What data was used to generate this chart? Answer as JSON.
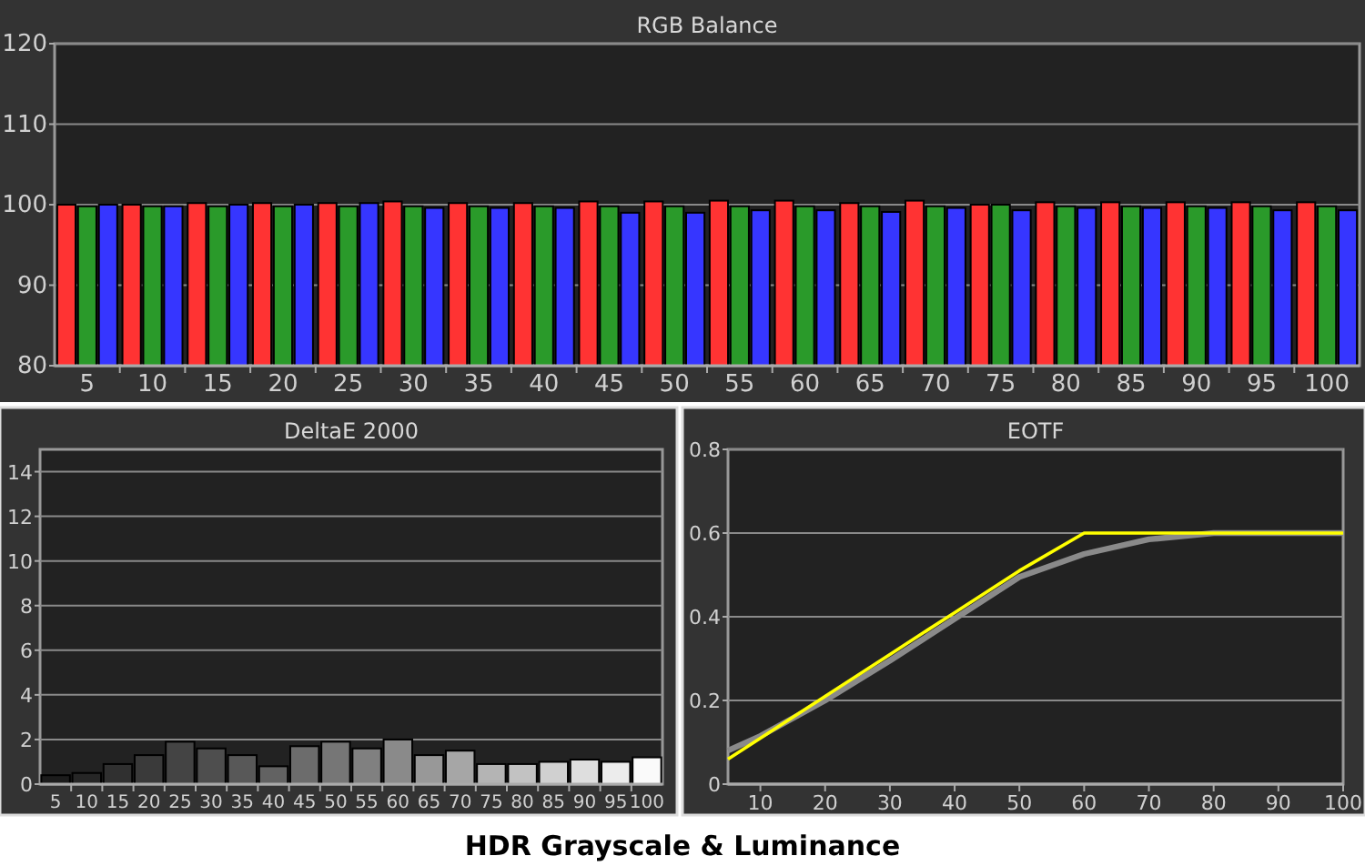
{
  "chart_data": [
    {
      "type": "bar",
      "title": "RGB Balance",
      "categories": [
        "5",
        "10",
        "15",
        "20",
        "25",
        "30",
        "35",
        "40",
        "45",
        "50",
        "55",
        "60",
        "65",
        "70",
        "75",
        "80",
        "85",
        "90",
        "95",
        "100"
      ],
      "series": [
        {
          "color": "#ff3333",
          "values": [
            100,
            100,
            100.2,
            100.2,
            100.2,
            100.4,
            100.2,
            100.2,
            100.4,
            100.4,
            100.5,
            100.5,
            100.2,
            100.5,
            100,
            100.3,
            100.3,
            100.3,
            100.3,
            100.3
          ]
        },
        {
          "color": "#2a9a2a",
          "values": [
            99.8,
            99.8,
            99.8,
            99.8,
            99.8,
            99.8,
            99.8,
            99.8,
            99.8,
            99.8,
            99.8,
            99.8,
            99.8,
            99.8,
            100,
            99.8,
            99.8,
            99.8,
            99.8,
            99.8
          ]
        },
        {
          "color": "#3636ff",
          "values": [
            100,
            99.8,
            100,
            100,
            100.2,
            99.6,
            99.6,
            99.6,
            99,
            99,
            99.3,
            99.3,
            99.1,
            99.6,
            99.3,
            99.6,
            99.6,
            99.6,
            99.3,
            99.3
          ]
        }
      ],
      "ylim": [
        80,
        120
      ],
      "yticks": [
        80,
        90,
        100,
        110,
        120
      ],
      "grid": "y",
      "annotations": [
        "HDR Grayscale & Luminance"
      ]
    },
    {
      "type": "bar",
      "title": "DeltaE 2000",
      "categories": [
        "5",
        "10",
        "15",
        "20",
        "25",
        "30",
        "35",
        "40",
        "45",
        "50",
        "55",
        "60",
        "65",
        "70",
        "75",
        "80",
        "85",
        "90",
        "95",
        "100"
      ],
      "values": [
        0.4,
        0.5,
        0.9,
        1.3,
        1.9,
        1.6,
        1.3,
        0.8,
        1.7,
        1.9,
        1.6,
        2.0,
        1.3,
        1.5,
        0.9,
        0.9,
        1.0,
        1.1,
        1.0,
        1.2
      ],
      "colors": [
        "#1c1c1c",
        "#262626",
        "#303030",
        "#3a3a3a",
        "#444444",
        "#4e4e4e",
        "#585858",
        "#626262",
        "#6c6c6c",
        "#767676",
        "#808080",
        "#8a8a8a",
        "#989898",
        "#a6a6a6",
        "#b4b4b4",
        "#c2c2c2",
        "#d0d0d0",
        "#dedede",
        "#ececec",
        "#fafafa"
      ],
      "ylim": [
        0,
        15
      ],
      "yticks": [
        0,
        2,
        4,
        6,
        8,
        10,
        12,
        14
      ],
      "grid": "y"
    },
    {
      "type": "line",
      "title": "EOTF",
      "series": [
        {
          "color": "#8a8a8a",
          "x": [
            5,
            10,
            20,
            30,
            40,
            50,
            60,
            70,
            80,
            90,
            100
          ],
          "values": [
            0.08,
            0.115,
            0.2,
            0.295,
            0.395,
            0.495,
            0.55,
            0.585,
            0.6,
            0.6,
            0.6
          ]
        },
        {
          "color": "#ffff00",
          "x": [
            5,
            10,
            20,
            30,
            40,
            50,
            60,
            70,
            80,
            90,
            100
          ],
          "values": [
            0.06,
            0.11,
            0.21,
            0.31,
            0.41,
            0.51,
            0.6,
            0.6,
            0.6,
            0.6,
            0.6
          ]
        }
      ],
      "xlim": [
        5,
        100
      ],
      "xticks": [
        10,
        20,
        30,
        40,
        50,
        60,
        70,
        80,
        90,
        100
      ],
      "ylim": [
        0,
        0.8
      ],
      "yticks": [
        0,
        0.2,
        0.4,
        0.6,
        0.8
      ],
      "grid": "y",
      "marker": "none",
      "line_style": "solid"
    }
  ]
}
